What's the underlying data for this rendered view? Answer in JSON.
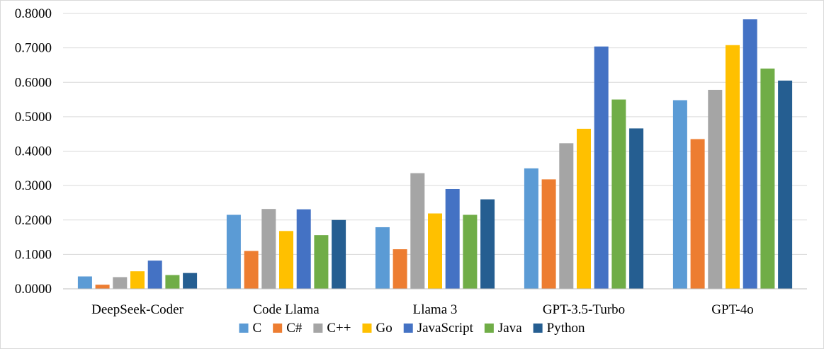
{
  "chart_data": {
    "type": "bar",
    "title": "",
    "xlabel": "",
    "ylabel": "",
    "ylim": [
      0,
      0.8
    ],
    "yticks": [
      0,
      0.1,
      0.2,
      0.3,
      0.4,
      0.5,
      0.6,
      0.7,
      0.8
    ],
    "ytick_labels": [
      "0.0000",
      "0.1000",
      "0.2000",
      "0.3000",
      "0.4000",
      "0.5000",
      "0.6000",
      "0.7000",
      "0.8000"
    ],
    "grid": true,
    "legend_position": "bottom",
    "categories": [
      "DeepSeek-Coder",
      "Code Llama",
      "Llama 3",
      "GPT-3.5-Turbo",
      "GPT-4o"
    ],
    "series": [
      {
        "name": "C",
        "color": "#5b9bd5",
        "values": [
          0.036,
          0.215,
          0.179,
          0.35,
          0.548
        ]
      },
      {
        "name": "C#",
        "color": "#ed7d31",
        "values": [
          0.012,
          0.11,
          0.115,
          0.318,
          0.435
        ]
      },
      {
        "name": "C++",
        "color": "#a5a5a5",
        "values": [
          0.034,
          0.232,
          0.336,
          0.423,
          0.578
        ]
      },
      {
        "name": "Go",
        "color": "#ffc000",
        "values": [
          0.051,
          0.168,
          0.219,
          0.465,
          0.708
        ]
      },
      {
        "name": "JavaScript",
        "color": "#4472c4",
        "values": [
          0.082,
          0.231,
          0.29,
          0.704,
          0.783
        ]
      },
      {
        "name": "Java",
        "color": "#70ad47",
        "values": [
          0.04,
          0.156,
          0.215,
          0.55,
          0.64
        ]
      },
      {
        "name": "Python",
        "color": "#255e91",
        "values": [
          0.046,
          0.2,
          0.26,
          0.466,
          0.605
        ]
      }
    ]
  }
}
